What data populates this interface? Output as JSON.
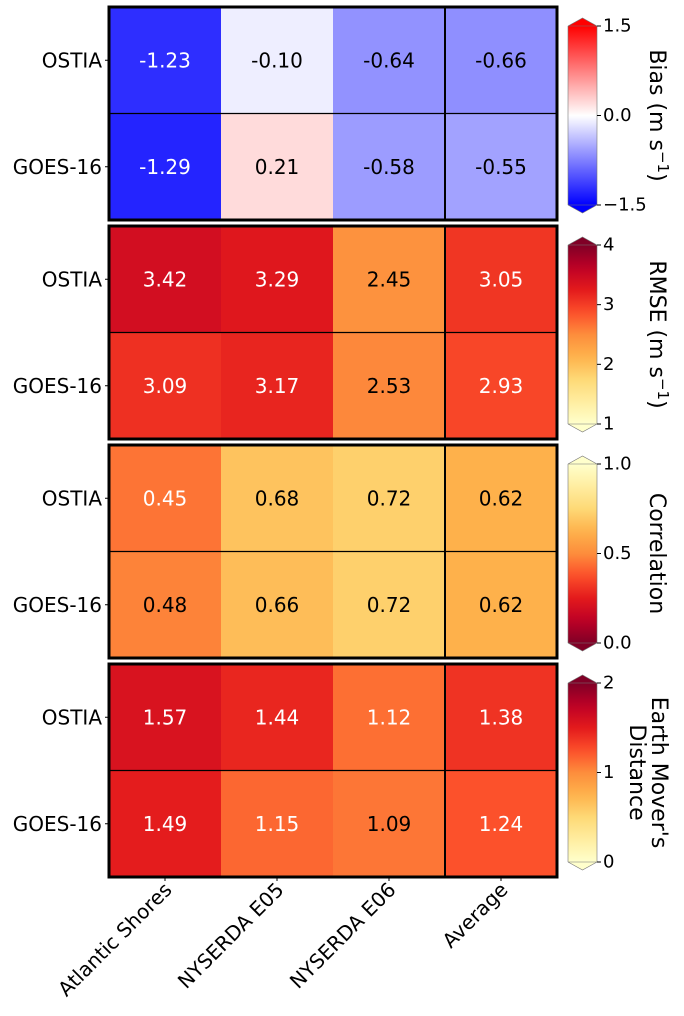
{
  "chart_data": {
    "type": "heatmap",
    "rows": [
      "OSTIA",
      "GOES-16"
    ],
    "columns": [
      "Atlantic Shores",
      "NYSERDA E05",
      "NYSERDA E06",
      "Average"
    ],
    "panels": [
      {
        "metric": "Bias",
        "colorbar_label": "Bias (m s",
        "colorbar_label_sup": "−1",
        "colorbar_label_end": ")",
        "colormap": "bwr",
        "vmin": -1.5,
        "vmax": 1.5,
        "ticks": [
          1.5,
          0.0,
          -1.5
        ],
        "tick_labels": [
          "1.5",
          "0.0",
          "−1.5"
        ],
        "values": [
          [
            -1.23,
            -0.1,
            -0.64,
            -0.66
          ],
          [
            -1.29,
            0.21,
            -0.58,
            -0.55
          ]
        ],
        "labels": [
          [
            "-1.23",
            "-0.10",
            "-0.64",
            "-0.66"
          ],
          [
            "-1.29",
            "0.21",
            "-0.58",
            "-0.55"
          ]
        ]
      },
      {
        "metric": "RMSE",
        "colorbar_label": "RMSE (m s",
        "colorbar_label_sup": "−1",
        "colorbar_label_end": ")",
        "colormap": "YlOrRd",
        "vmin": 1,
        "vmax": 4,
        "ticks": [
          4,
          3,
          2,
          1
        ],
        "tick_labels": [
          "4",
          "3",
          "2",
          "1"
        ],
        "values": [
          [
            3.42,
            3.29,
            2.45,
            3.05
          ],
          [
            3.09,
            3.17,
            2.53,
            2.93
          ]
        ],
        "labels": [
          [
            "3.42",
            "3.29",
            "2.45",
            "3.05"
          ],
          [
            "3.09",
            "3.17",
            "2.53",
            "2.93"
          ]
        ]
      },
      {
        "metric": "Correlation",
        "colorbar_label": "Correlation",
        "colormap": "YlOrRd_r",
        "vmin": 0.0,
        "vmax": 1.0,
        "ticks": [
          1.0,
          0.5,
          0.0
        ],
        "tick_labels": [
          "1.0",
          "0.5",
          "0.0"
        ],
        "values": [
          [
            0.45,
            0.68,
            0.72,
            0.62
          ],
          [
            0.48,
            0.66,
            0.72,
            0.62
          ]
        ],
        "labels": [
          [
            "0.45",
            "0.68",
            "0.72",
            "0.62"
          ],
          [
            "0.48",
            "0.66",
            "0.72",
            "0.62"
          ]
        ]
      },
      {
        "metric": "Earth Mover's Distance",
        "colorbar_label": "Earth Mover's",
        "colorbar_label_line2": "Distance",
        "colormap": "YlOrRd",
        "vmin": 0,
        "vmax": 2,
        "ticks": [
          2,
          1,
          0
        ],
        "tick_labels": [
          "2",
          "1",
          "0"
        ],
        "values": [
          [
            1.57,
            1.44,
            1.12,
            1.38
          ],
          [
            1.49,
            1.15,
            1.09,
            1.24
          ]
        ],
        "labels": [
          [
            "1.57",
            "1.44",
            "1.12",
            "1.38"
          ],
          [
            "1.49",
            "1.15",
            "1.09",
            "1.24"
          ]
        ]
      }
    ]
  }
}
